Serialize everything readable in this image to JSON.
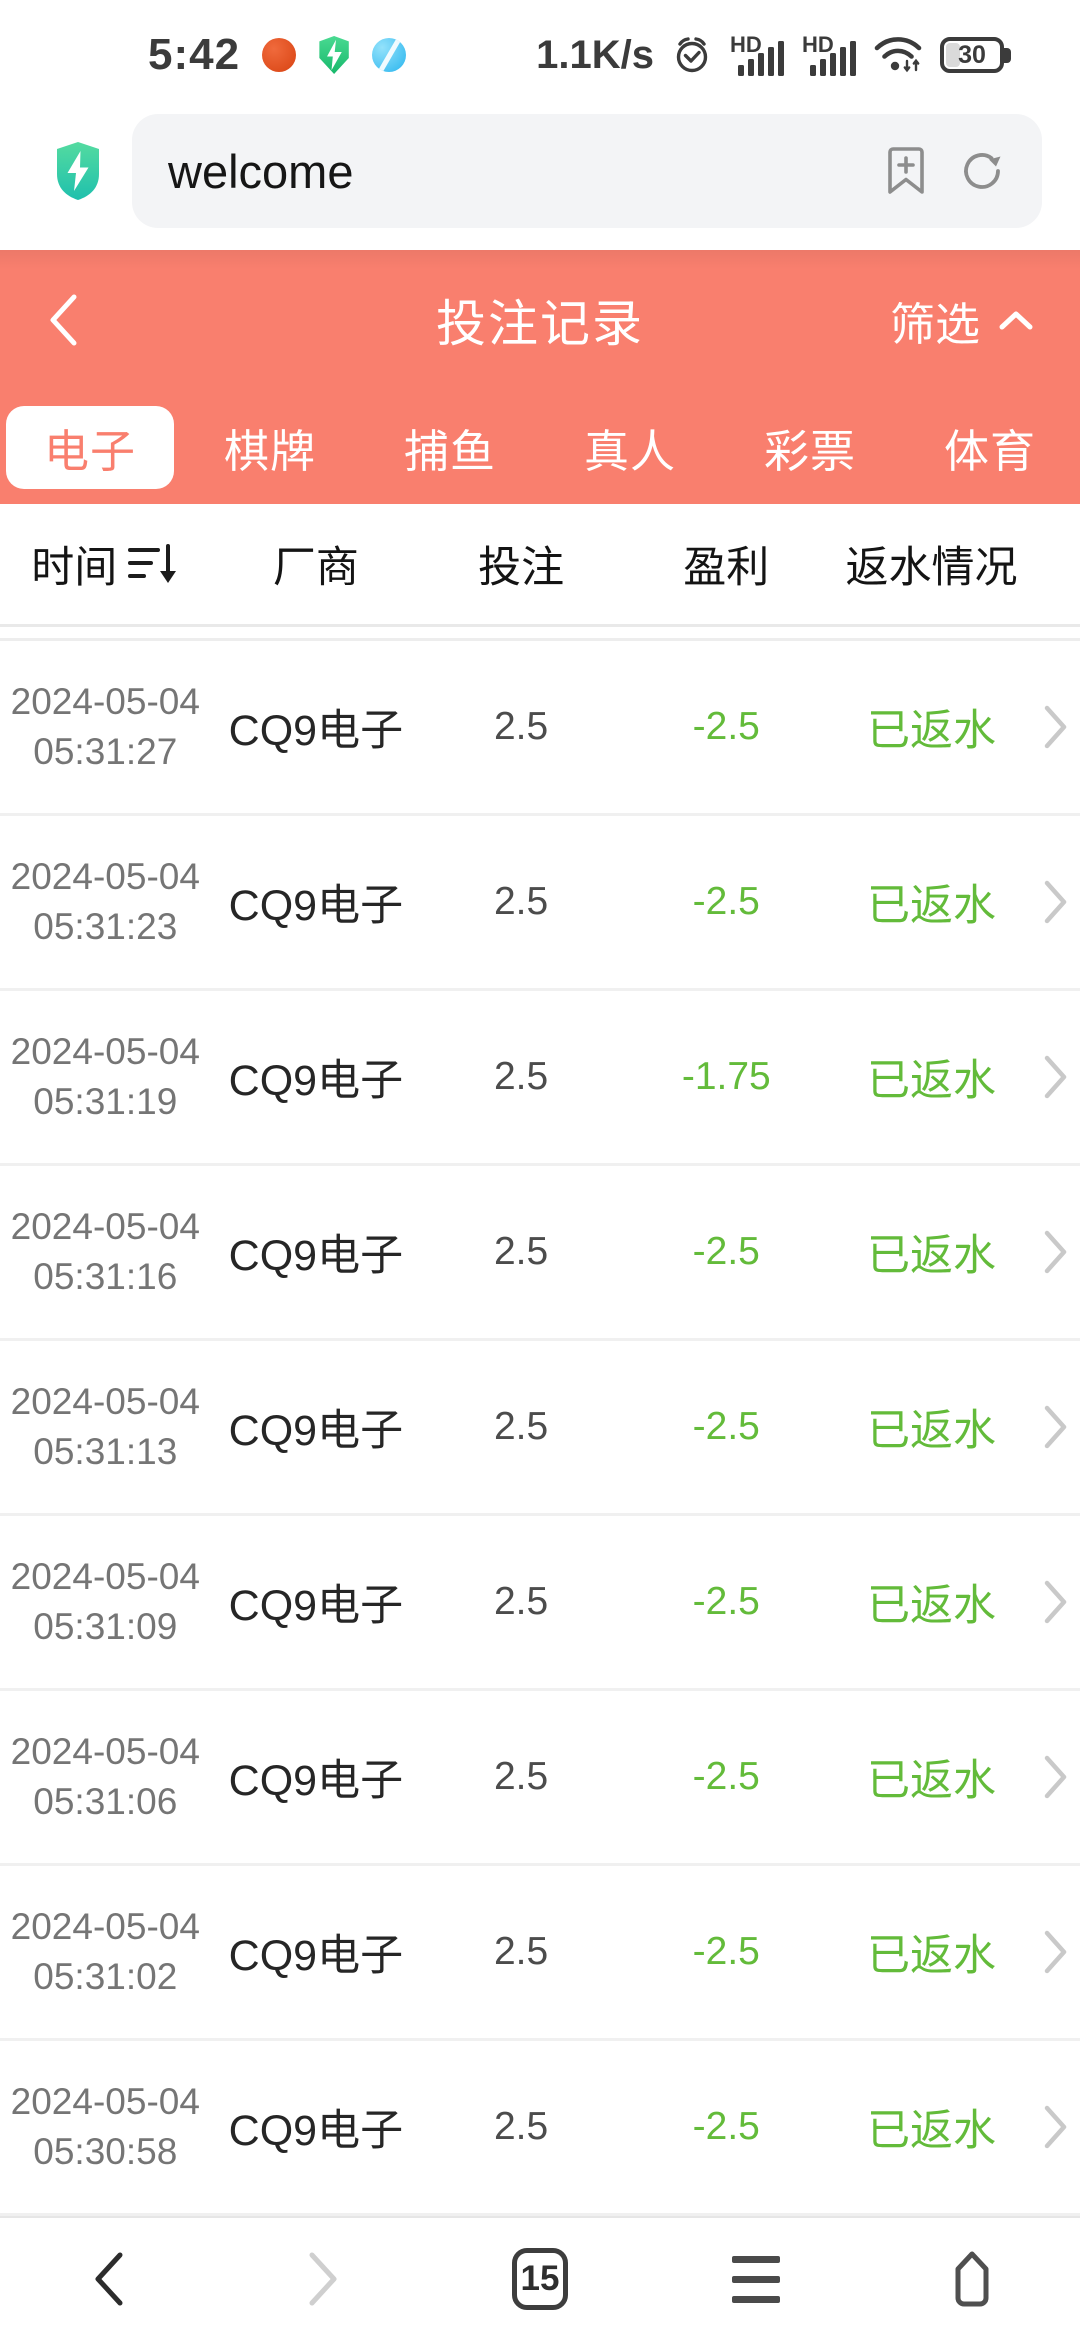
{
  "colors": {
    "accent": "#f97f6e",
    "positive_green": "#63bb3a"
  },
  "status_bar": {
    "time": "5:42",
    "network_speed": "1.1K/s",
    "sim1_label": "HD",
    "sim2_label": "HD",
    "battery_level": "30",
    "left_icons": [
      "tomato-app-icon",
      "shield-app-icon",
      "globe-app-icon"
    ],
    "right_icons": [
      "alarm-icon",
      "signal-icon",
      "signal-icon",
      "wifi-icon",
      "battery-icon"
    ]
  },
  "browser": {
    "url_text": "welcome",
    "icons": [
      "security-shield-icon",
      "bookmark-add-icon",
      "refresh-icon"
    ]
  },
  "header": {
    "title": "投注记录",
    "filter_label": "筛选"
  },
  "tabs": [
    {
      "label": "电子",
      "active": true
    },
    {
      "label": "棋牌",
      "active": false
    },
    {
      "label": "捕鱼",
      "active": false
    },
    {
      "label": "真人",
      "active": false
    },
    {
      "label": "彩票",
      "active": false
    },
    {
      "label": "体育",
      "active": false
    }
  ],
  "table": {
    "columns": [
      "时间",
      "厂商",
      "投注",
      "盈利",
      "返水情况"
    ],
    "rows": [
      {
        "date": "2024-05-04",
        "time": "05:31:27",
        "vendor": "CQ9电子",
        "bet": "2.5",
        "profit": "-2.5",
        "rebate": "已返水"
      },
      {
        "date": "2024-05-04",
        "time": "05:31:23",
        "vendor": "CQ9电子",
        "bet": "2.5",
        "profit": "-2.5",
        "rebate": "已返水"
      },
      {
        "date": "2024-05-04",
        "time": "05:31:19",
        "vendor": "CQ9电子",
        "bet": "2.5",
        "profit": "-1.75",
        "rebate": "已返水"
      },
      {
        "date": "2024-05-04",
        "time": "05:31:16",
        "vendor": "CQ9电子",
        "bet": "2.5",
        "profit": "-2.5",
        "rebate": "已返水"
      },
      {
        "date": "2024-05-04",
        "time": "05:31:13",
        "vendor": "CQ9电子",
        "bet": "2.5",
        "profit": "-2.5",
        "rebate": "已返水"
      },
      {
        "date": "2024-05-04",
        "time": "05:31:09",
        "vendor": "CQ9电子",
        "bet": "2.5",
        "profit": "-2.5",
        "rebate": "已返水"
      },
      {
        "date": "2024-05-04",
        "time": "05:31:06",
        "vendor": "CQ9电子",
        "bet": "2.5",
        "profit": "-2.5",
        "rebate": "已返水"
      },
      {
        "date": "2024-05-04",
        "time": "05:31:02",
        "vendor": "CQ9电子",
        "bet": "2.5",
        "profit": "-2.5",
        "rebate": "已返水"
      },
      {
        "date": "2024-05-04",
        "time": "05:30:58",
        "vendor": "CQ9电子",
        "bet": "2.5",
        "profit": "-2.5",
        "rebate": "已返水"
      }
    ]
  },
  "bottom_nav": {
    "tab_count": "15"
  }
}
